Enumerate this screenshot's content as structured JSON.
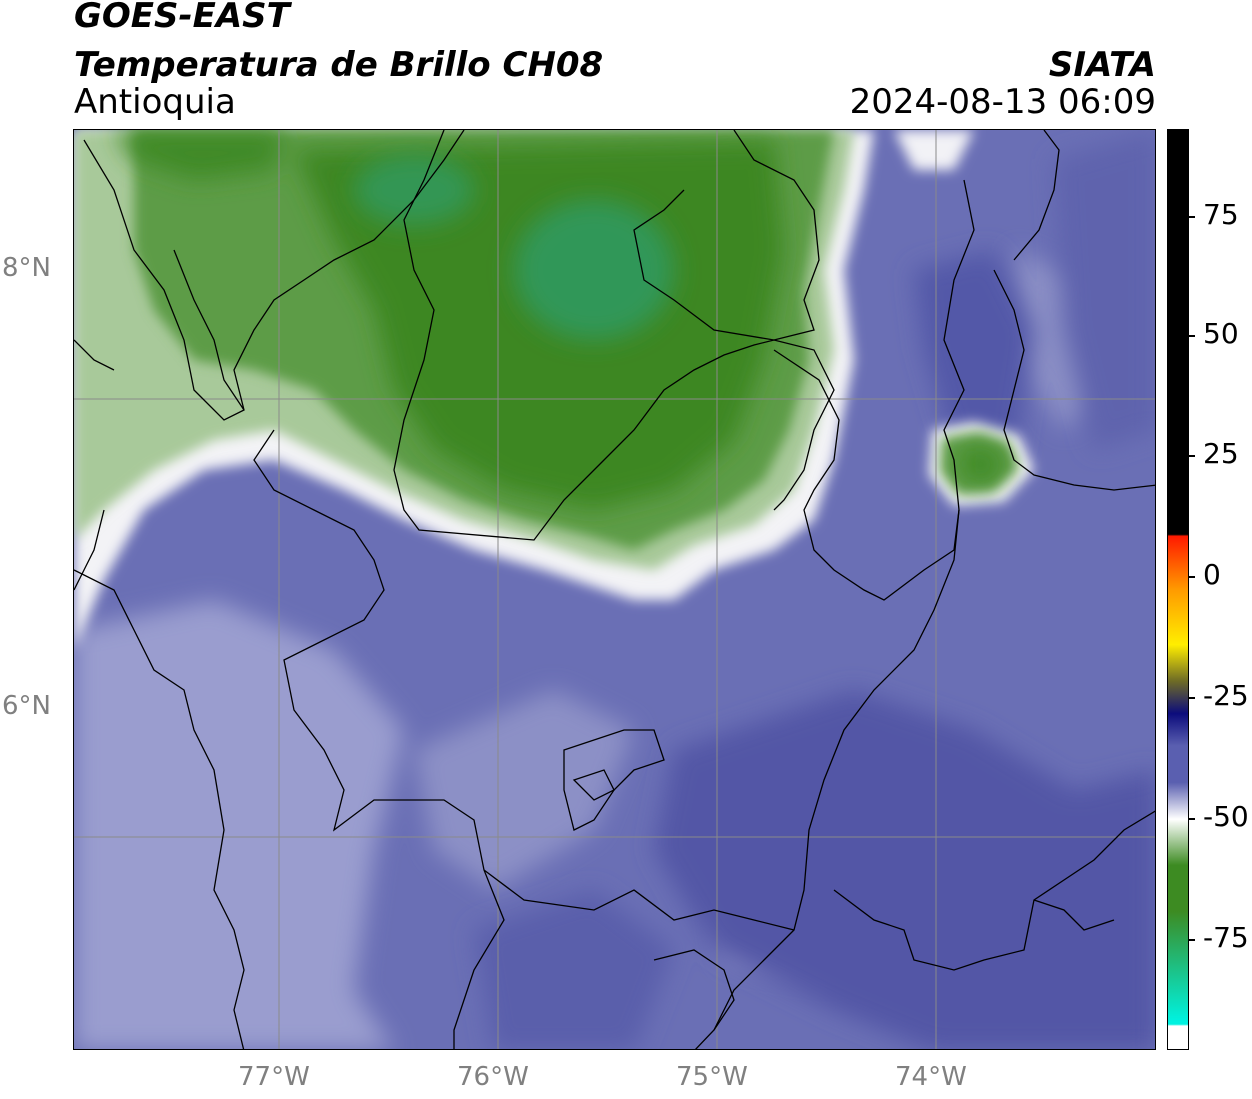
{
  "header": {
    "satellite": "GOES-EAST",
    "product": "Temperatura de Brillo CH08",
    "region": "Antioquia",
    "organization": "SIATA",
    "timestamp": "2024-08-13 06:09"
  },
  "map": {
    "lat_ticks": [
      "8°N",
      "6°N"
    ],
    "lon_ticks": [
      "77°W",
      "76°W",
      "75°W",
      "74°W"
    ],
    "colors": {
      "deep_blue": "#4f55a4",
      "mid_blue": "#7378b8",
      "light_blue": "#a9acd6",
      "white_band": "#f4f4f7",
      "light_green": "#a9c99a",
      "mid_green": "#5b9a44",
      "dark_green": "#3f8a25",
      "teal": "#2fa06a"
    }
  },
  "colorbar": {
    "ticks": [
      "75",
      "50",
      "25",
      "0",
      "-25",
      "-50",
      "-75"
    ],
    "range": [
      -95,
      90
    ],
    "colors": {
      "black": "#000000",
      "red": "#ff1a00",
      "orange": "#ff9a00",
      "yellow": "#ffee00",
      "olive": "#6d6a26",
      "navy": "#0c0c7c",
      "blue": "#5a5fb0",
      "white": "#ffffff",
      "green": "#3d8b22",
      "cyan": "#00f2e0"
    }
  }
}
